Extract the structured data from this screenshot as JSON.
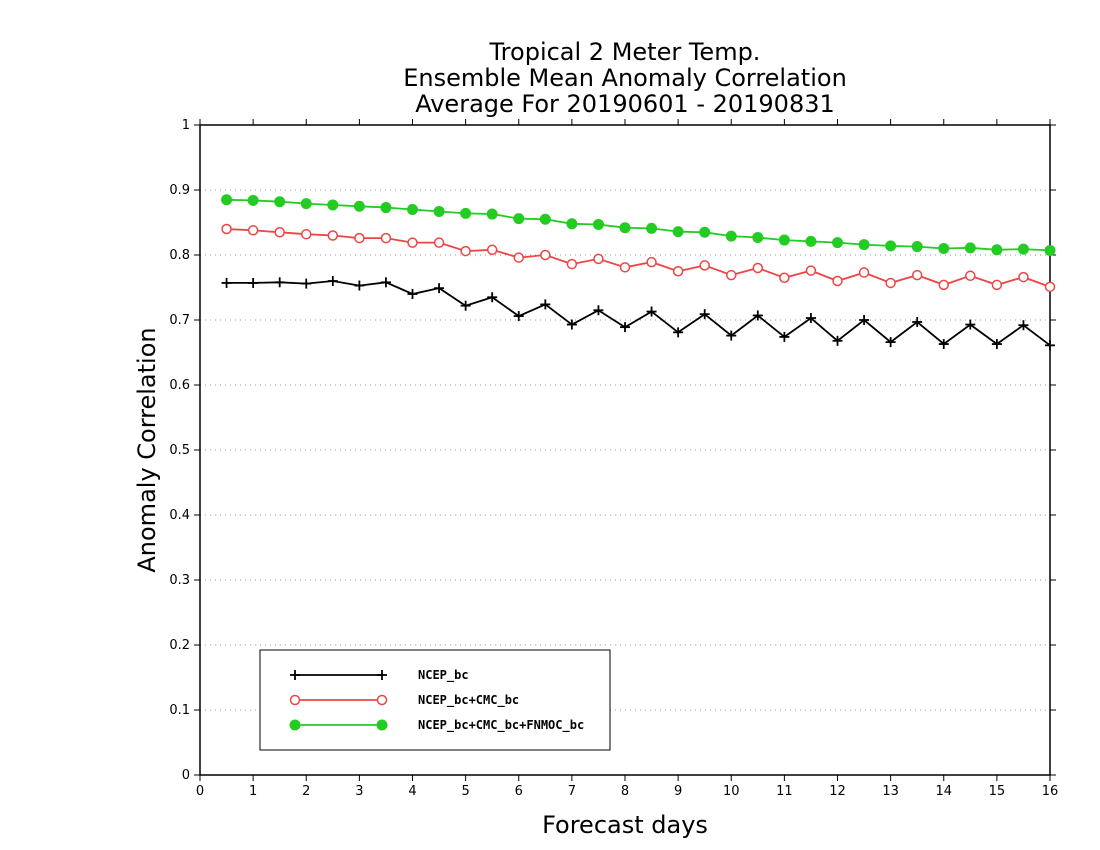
{
  "chart_data": {
    "type": "line",
    "title": [
      "Tropical 2 Meter Temp.",
      "Ensemble Mean Anomaly Correlation",
      "Average For 20190601 - 20190831"
    ],
    "xlabel": "Forecast days",
    "ylabel": "Anomaly Correlation",
    "xlim": [
      0,
      16
    ],
    "ylim": [
      0,
      1
    ],
    "xticks": [
      "0",
      "1",
      "2",
      "3",
      "4",
      "5",
      "6",
      "7",
      "8",
      "9",
      "10",
      "11",
      "12",
      "13",
      "14",
      "15",
      "16"
    ],
    "yticks": [
      "0",
      "0.1",
      "0.2",
      "0.3",
      "0.4",
      "0.5",
      "0.6",
      "0.7",
      "0.8",
      "0.9",
      "1"
    ],
    "grid": "horizontal dotted",
    "legend_position": "bottom-left",
    "x": [
      0.5,
      1,
      1.5,
      2,
      2.5,
      3,
      3.5,
      4,
      4.5,
      5,
      5.5,
      6,
      6.5,
      7,
      7.5,
      8,
      8.5,
      9,
      9.5,
      10,
      10.5,
      11,
      11.5,
      12,
      12.5,
      13,
      13.5,
      14,
      14.5,
      15,
      15.5,
      16
    ],
    "series": [
      {
        "name": "NCEP_bc",
        "color": "#000000",
        "marker": "plus",
        "values": [
          0.757,
          0.757,
          0.758,
          0.756,
          0.76,
          0.753,
          0.758,
          0.74,
          0.749,
          0.722,
          0.735,
          0.706,
          0.724,
          0.693,
          0.715,
          0.689,
          0.713,
          0.681,
          0.709,
          0.676,
          0.707,
          0.674,
          0.703,
          0.668,
          0.7,
          0.666,
          0.697,
          0.663,
          0.693,
          0.663,
          0.692,
          0.661
        ]
      },
      {
        "name": "NCEP_bc+CMC_bc",
        "color": "#ee4444",
        "marker": "open-circle",
        "values": [
          0.84,
          0.838,
          0.835,
          0.832,
          0.83,
          0.826,
          0.826,
          0.819,
          0.819,
          0.806,
          0.808,
          0.796,
          0.8,
          0.786,
          0.794,
          0.781,
          0.789,
          0.775,
          0.784,
          0.769,
          0.78,
          0.765,
          0.776,
          0.76,
          0.773,
          0.757,
          0.769,
          0.754,
          0.768,
          0.754,
          0.766,
          0.751
        ]
      },
      {
        "name": "NCEP_bc+CMC_bc+FNMOC_bc",
        "color": "#22cc22",
        "marker": "filled-circle",
        "values": [
          0.885,
          0.884,
          0.882,
          0.879,
          0.877,
          0.875,
          0.873,
          0.87,
          0.867,
          0.864,
          0.863,
          0.856,
          0.855,
          0.848,
          0.847,
          0.842,
          0.841,
          0.836,
          0.835,
          0.829,
          0.827,
          0.823,
          0.821,
          0.819,
          0.816,
          0.814,
          0.813,
          0.81,
          0.811,
          0.808,
          0.809,
          0.807
        ]
      }
    ]
  }
}
